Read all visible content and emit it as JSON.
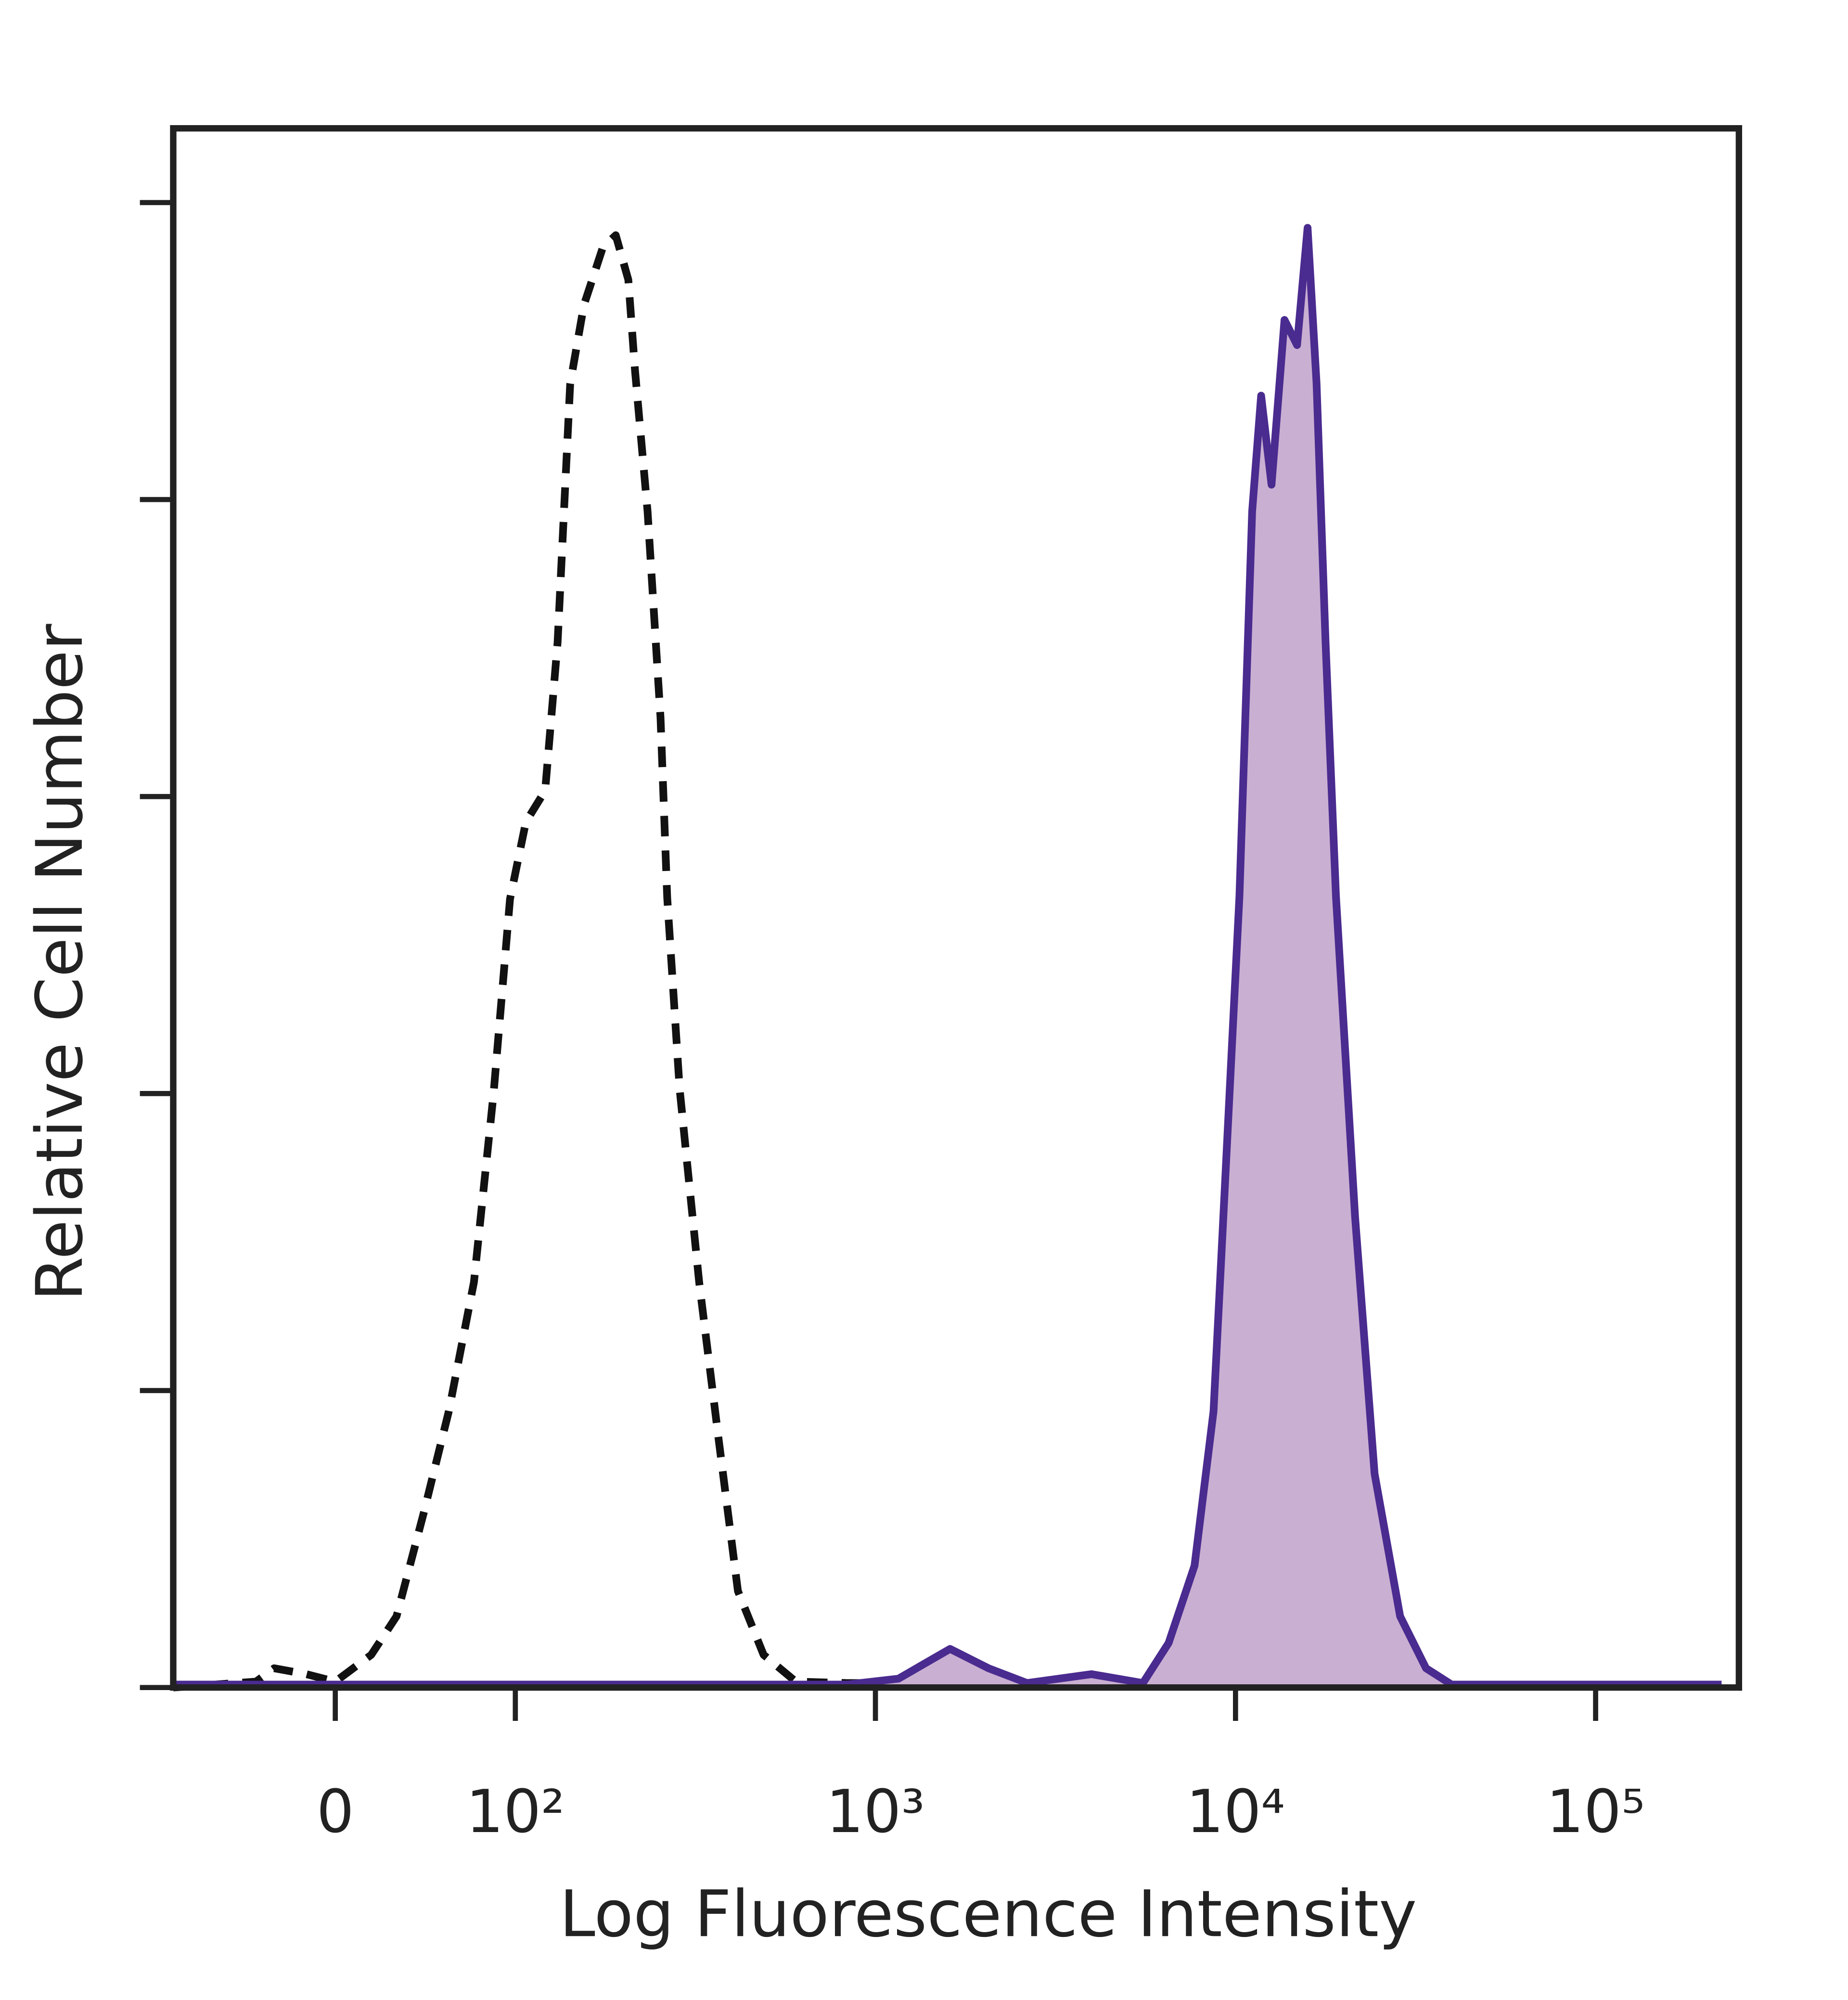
{
  "chart_data": {
    "type": "histogram-overlay",
    "x_label": "Log Fluorescence Intensity",
    "y_label": "Relative Cell Number",
    "xscale": "biexponential",
    "xlim": [
      -90,
      250000
    ],
    "xticks": [
      0,
      {
        "value": 100,
        "label": "10²"
      },
      {
        "value": 1000,
        "label": "10³"
      },
      {
        "value": 10000,
        "label": "10⁴"
      },
      {
        "value": 100000,
        "label": "10⁵"
      }
    ],
    "ylim": [
      0,
      105
    ],
    "yticks": [
      0,
      20,
      40,
      60,
      80,
      100
    ],
    "series": [
      {
        "color": "#111111",
        "style": "dashed",
        "x": [
          -90,
          -44,
          -34,
          -16,
          0,
          20,
          34,
          49,
          63,
          77,
          88,
          97,
          107,
          121,
          131,
          142,
          155,
          175,
          190,
          206,
          215,
          233,
          253,
          264,
          286,
          324,
          366,
          415,
          489,
          601,
          834,
          1159
        ],
        "values": [
          0,
          0.4,
          1.3,
          0.9,
          0.4,
          2.2,
          4.8,
          11.7,
          18.6,
          27.3,
          40.1,
          53.1,
          58.3,
          60.4,
          70.4,
          87.8,
          93.1,
          97,
          97.8,
          94.8,
          88.7,
          79.2,
          65.3,
          53.2,
          40.3,
          27.3,
          16.9,
          6.5,
          2.2,
          0.4,
          0.3,
          0.3
        ]
      },
      {
        "color": "#4a2b8f",
        "fill": "#c9afd2",
        "style": "filled",
        "x": [
          -90,
          834,
          1159,
          1611,
          2061,
          2637,
          3981,
          5534,
          6518,
          7691,
          8690,
          9441,
          10257,
          11117,
          11776,
          12589,
          13677,
          14825,
          15849,
          16788,
          17783,
          19011,
          21478,
          24322,
          28642,
          33806,
          39811,
          223872
        ],
        "values": [
          0.2,
          0.2,
          0.6,
          2.6,
          1.3,
          0.3,
          0.9,
          0.3,
          3,
          8.2,
          18.6,
          35.9,
          53.3,
          79.2,
          87,
          81,
          92.1,
          90.4,
          98.3,
          87.8,
          70.4,
          53.3,
          31.7,
          14.4,
          4.8,
          1.3,
          0.2,
          0.2
        ]
      }
    ]
  }
}
